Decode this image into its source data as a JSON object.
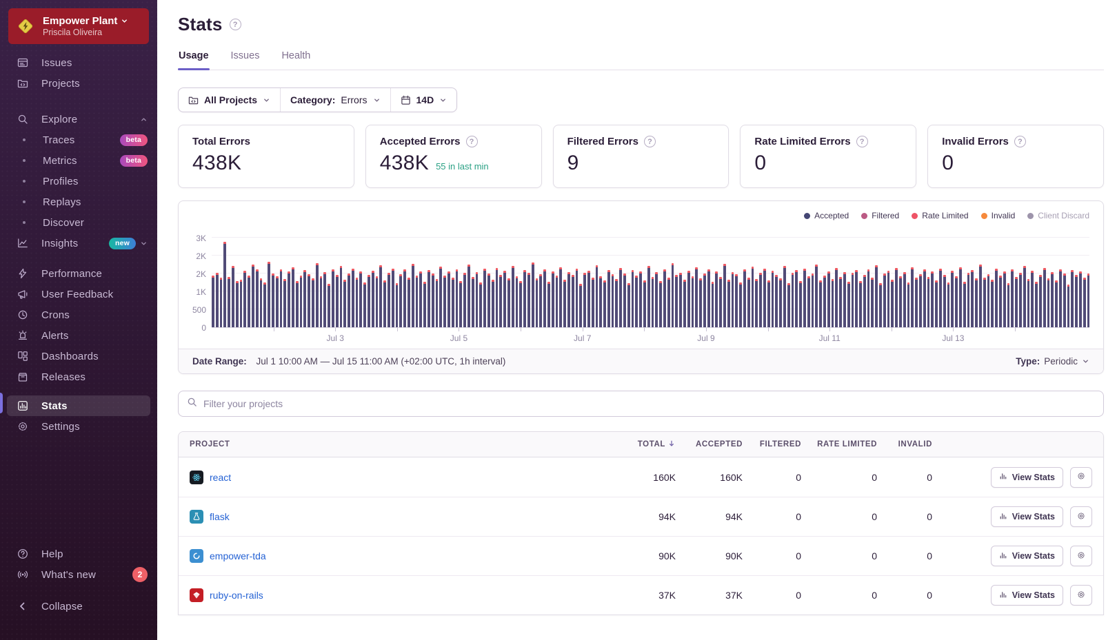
{
  "sidebar": {
    "org": {
      "name": "Empower Plant",
      "user": "Priscila Oliveira"
    },
    "primary": [
      {
        "icon": "issues",
        "label": "Issues"
      },
      {
        "icon": "projects",
        "label": "Projects"
      }
    ],
    "explore": {
      "icon": "search",
      "label": "Explore"
    },
    "explore_children": [
      {
        "label": "Traces",
        "badge": "beta"
      },
      {
        "label": "Metrics",
        "badge": "beta"
      },
      {
        "label": "Profiles"
      },
      {
        "label": "Replays"
      },
      {
        "label": "Discover"
      }
    ],
    "insights": {
      "icon": "insights",
      "label": "Insights",
      "badge": "new"
    },
    "secondary": [
      {
        "icon": "performance",
        "label": "Performance"
      },
      {
        "icon": "feedback",
        "label": "User Feedback"
      },
      {
        "icon": "crons",
        "label": "Crons"
      },
      {
        "icon": "alerts",
        "label": "Alerts"
      },
      {
        "icon": "dashboards",
        "label": "Dashboards"
      },
      {
        "icon": "releases",
        "label": "Releases"
      }
    ],
    "tertiary": [
      {
        "icon": "stats",
        "label": "Stats",
        "active": true
      },
      {
        "icon": "settings",
        "label": "Settings"
      }
    ],
    "footer": [
      {
        "icon": "help",
        "label": "Help"
      },
      {
        "icon": "whatsnew",
        "label": "What's new",
        "badge": "2"
      },
      {
        "icon": "collapse",
        "label": "Collapse"
      }
    ]
  },
  "header": {
    "title": "Stats",
    "tabs": [
      {
        "label": "Usage",
        "active": true
      },
      {
        "label": "Issues",
        "active": false
      },
      {
        "label": "Health",
        "active": false
      }
    ]
  },
  "filters": {
    "projects_label": "All Projects",
    "category_label": "Category:",
    "category_value": "Errors",
    "period": "14D"
  },
  "cards": [
    {
      "label": "Total Errors",
      "value": "438K",
      "help": false,
      "sub": ""
    },
    {
      "label": "Accepted Errors",
      "value": "438K",
      "help": true,
      "sub": "55 in last min"
    },
    {
      "label": "Filtered Errors",
      "value": "9",
      "help": true,
      "sub": ""
    },
    {
      "label": "Rate Limited Errors",
      "value": "0",
      "help": true,
      "sub": ""
    },
    {
      "label": "Invalid Errors",
      "value": "0",
      "help": true,
      "sub": ""
    }
  ],
  "chart_data": {
    "type": "bar",
    "title": "Errors over time (hourly)",
    "legend": [
      {
        "label": "Accepted",
        "color": "#444674",
        "muted": false
      },
      {
        "label": "Filtered",
        "color": "#bb5a84",
        "muted": false
      },
      {
        "label": "Rate Limited",
        "color": "#ee5366",
        "muted": false
      },
      {
        "label": "Invalid",
        "color": "#f6893b",
        "muted": false
      },
      {
        "label": "Client Discard",
        "color": "#9d94ab",
        "muted": true
      }
    ],
    "y_ticks_top_down": [
      "3K",
      "2K",
      "2K",
      "1K",
      "500",
      "0"
    ],
    "x_labels": [
      "Jul 3",
      "Jul 5",
      "Jul 7",
      "Jul 9",
      "Jul 11",
      "Jul 13"
    ],
    "x_range": [
      "Jul 1",
      "Jul 15"
    ],
    "max_value": 2750,
    "bar_color": "#514b77",
    "cap_color": "#ee5a63",
    "values": [
      1560,
      1640,
      1500,
      2580,
      1520,
      1850,
      1400,
      1430,
      1700,
      1560,
      1900,
      1740,
      1480,
      1360,
      1980,
      1620,
      1540,
      1760,
      1450,
      1680,
      1820,
      1390,
      1570,
      1720,
      1610,
      1480,
      1930,
      1550,
      1660,
      1310,
      1740,
      1590,
      1850,
      1430,
      1620,
      1770,
      1500,
      1690,
      1360,
      1580,
      1700,
      1540,
      1870,
      1420,
      1650,
      1780,
      1330,
      1600,
      1750,
      1490,
      1910,
      1560,
      1680,
      1380,
      1720,
      1630,
      1460,
      1830,
      1570,
      1690,
      1510,
      1760,
      1400,
      1640,
      1890,
      1530,
      1670,
      1350,
      1780,
      1620,
      1440,
      1800,
      1580,
      1700,
      1470,
      1860,
      1540,
      1390,
      1720,
      1650,
      1950,
      1480,
      1610,
      1740,
      1370,
      1690,
      1560,
      1820,
      1430,
      1660,
      1590,
      1770,
      1320,
      1640,
      1710,
      1500,
      1880,
      1550,
      1420,
      1730,
      1600,
      1460,
      1790,
      1630,
      1340,
      1720,
      1570,
      1680,
      1410,
      1850,
      1520,
      1660,
      1390,
      1760,
      1490,
      1940,
      1580,
      1650,
      1430,
      1700,
      1550,
      1810,
      1470,
      1620,
      1750,
      1380,
      1690,
      1530,
      1920,
      1440,
      1670,
      1600,
      1350,
      1740,
      1510,
      1830,
      1460,
      1640,
      1770,
      1420,
      1710,
      1590,
      1480,
      1860,
      1330,
      1650,
      1720,
      1400,
      1780,
      1540,
      1630,
      1900,
      1410,
      1560,
      1690,
      1450,
      1800,
      1520,
      1670,
      1380,
      1640,
      1730,
      1390,
      1580,
      1760,
      1500,
      1870,
      1340,
      1620,
      1700,
      1430,
      1790,
      1550,
      1660,
      1360,
      1810,
      1490,
      1610,
      1750,
      1530,
      1680,
      1420,
      1770,
      1590,
      1350,
      1700,
      1540,
      1820,
      1380,
      1640,
      1730,
      1470,
      1890,
      1510,
      1600,
      1440,
      1780,
      1560,
      1690,
      1330,
      1740,
      1520,
      1650,
      1850,
      1460,
      1710,
      1370,
      1590,
      1800,
      1480,
      1670,
      1410,
      1760,
      1630,
      1300,
      1720,
      1580,
      1690,
      1510,
      1620
    ]
  },
  "date_bar": {
    "label": "Date Range:",
    "value": "Jul 1 10:00 AM — Jul 15 11:00 AM (+02:00 UTC, 1h interval)",
    "type_label": "Type:",
    "type_value": "Periodic"
  },
  "project_filter": {
    "placeholder": "Filter your projects"
  },
  "table": {
    "columns": [
      "PROJECT",
      "TOTAL",
      "ACCEPTED",
      "FILTERED",
      "RATE LIMITED",
      "INVALID"
    ],
    "sorted_column": "TOTAL",
    "action_label": "View Stats",
    "rows": [
      {
        "project": "react",
        "platform": "react",
        "total": "160K",
        "accepted": "160K",
        "filtered": "0",
        "rate_limited": "0",
        "invalid": "0"
      },
      {
        "project": "flask",
        "platform": "flask",
        "total": "94K",
        "accepted": "94K",
        "filtered": "0",
        "rate_limited": "0",
        "invalid": "0"
      },
      {
        "project": "empower-tda",
        "platform": "empower-tda",
        "total": "90K",
        "accepted": "90K",
        "filtered": "0",
        "rate_limited": "0",
        "invalid": "0"
      },
      {
        "project": "ruby-on-rails",
        "platform": "ruby-on-rails",
        "total": "37K",
        "accepted": "37K",
        "filtered": "0",
        "rate_limited": "0",
        "invalid": "0"
      }
    ]
  }
}
